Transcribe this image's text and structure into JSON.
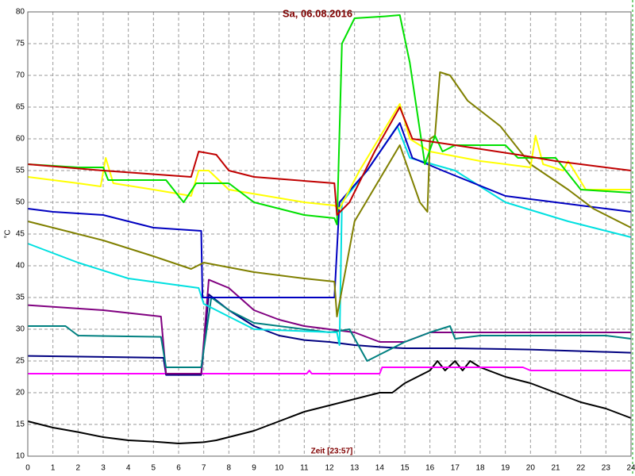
{
  "chart_data": {
    "type": "line",
    "title": "Sa, 06.08.2016",
    "ylabel": "°C",
    "xlabel": "Zeit [23:57]",
    "xlim": [
      0,
      24
    ],
    "xticks": [
      0,
      1,
      2,
      3,
      4,
      5,
      6,
      7,
      8,
      9,
      10,
      11,
      12,
      13,
      14,
      15,
      16,
      17,
      18,
      19,
      20,
      21,
      22,
      23,
      24
    ],
    "ylim": [
      10,
      80
    ],
    "yticks": [
      10,
      15,
      20,
      25,
      30,
      35,
      40,
      45,
      50,
      55,
      60,
      65,
      70,
      75,
      80
    ],
    "grid": true,
    "series": [
      {
        "color": "#000000",
        "x": [
          0,
          1,
          2,
          3,
          4,
          5,
          6,
          7,
          7.5,
          8,
          9,
          10,
          11,
          12,
          13,
          14,
          14.5,
          15,
          15.5,
          16,
          16.3,
          16.6,
          17,
          17.3,
          17.6,
          18,
          19,
          20,
          21,
          22,
          23,
          24
        ],
        "values": [
          15.5,
          14.5,
          13.8,
          13,
          12.5,
          12.3,
          12,
          12.2,
          12.5,
          13,
          14,
          15.5,
          17,
          18,
          19,
          20,
          20,
          21.5,
          22.5,
          23.5,
          25,
          23.5,
          25,
          23.5,
          25,
          24,
          22.5,
          21.5,
          20,
          18.5,
          17.5,
          16
        ]
      },
      {
        "color": "#ff00ff",
        "x": [
          0,
          11.1,
          11.2,
          11.3,
          14,
          14.1,
          19.7,
          20,
          24
        ],
        "values": [
          23,
          23,
          23.5,
          23,
          23,
          24,
          24,
          23.5,
          23.5
        ]
      },
      {
        "color": "#000080",
        "x": [
          0,
          5.4,
          5.5,
          6.9,
          7.2,
          8,
          9,
          10,
          11,
          12,
          13,
          14,
          15,
          17,
          20,
          24
        ],
        "values": [
          25.8,
          25.5,
          22.8,
          22.8,
          35.5,
          33,
          30.5,
          29,
          28.3,
          28,
          27.5,
          27.2,
          27,
          27,
          26.8,
          26.3
        ]
      },
      {
        "color": "#800080",
        "x": [
          0,
          3,
          5.3,
          5.5,
          6.9,
          7.2,
          8,
          9,
          10,
          11,
          12,
          13,
          14,
          15,
          16,
          18,
          20,
          24
        ],
        "values": [
          33.8,
          33,
          32,
          23,
          23,
          37.8,
          36.5,
          33,
          31.5,
          30.5,
          30,
          29.5,
          28,
          28,
          29.5,
          29.5,
          29.5,
          29.5
        ]
      },
      {
        "color": "#008080",
        "x": [
          0,
          1.5,
          2,
          5.3,
          5.5,
          6.9,
          7.3,
          8,
          9,
          12,
          12.8,
          13.5,
          14,
          15,
          16,
          16.8,
          17,
          18,
          20,
          23,
          24
        ],
        "values": [
          30.5,
          30.5,
          29,
          28.8,
          24,
          24,
          35,
          33,
          31,
          29.5,
          30,
          25,
          26,
          28,
          29.5,
          30.5,
          28.5,
          29,
          29,
          29,
          28.5
        ]
      },
      {
        "color": "#00e0e0",
        "x": [
          0,
          2,
          4,
          6.8,
          7,
          8,
          9,
          12.3,
          12.4,
          12.5,
          13.5,
          14.7,
          15.2,
          17,
          19,
          21.5,
          22,
          24
        ],
        "values": [
          43.5,
          40.5,
          38,
          36.5,
          34,
          32,
          30,
          29.5,
          27.5,
          50,
          55,
          62,
          57,
          55,
          50,
          47,
          46.5,
          44.5
        ]
      },
      {
        "color": "#0000c0",
        "x": [
          0,
          1,
          3,
          5,
          6.9,
          6.95,
          12.2,
          12.4,
          13.5,
          14.8,
          15.3,
          16.5,
          19,
          21,
          23,
          24
        ],
        "values": [
          49,
          48.5,
          48,
          46,
          45.5,
          35,
          35,
          50,
          55,
          62.5,
          57,
          55,
          51,
          50,
          49,
          48.5
        ]
      },
      {
        "color": "#808000",
        "x": [
          0,
          1.5,
          3,
          5,
          6.5,
          7,
          9,
          11,
          12.2,
          12.3,
          13,
          14.8,
          15.6,
          15.9,
          16,
          16.2,
          16.4,
          16.8,
          17.5,
          18.8,
          20,
          21.5,
          22.5,
          24
        ],
        "values": [
          47,
          45.5,
          44,
          41.5,
          39.5,
          40.5,
          39,
          38,
          37.5,
          32,
          47,
          59,
          50,
          48.5,
          60,
          60.5,
          70.5,
          70,
          66,
          62,
          56,
          52,
          49,
          46
        ]
      },
      {
        "color": "#ffff00",
        "x": [
          0,
          2,
          2.9,
          3.1,
          3.4,
          5,
          6.5,
          6.8,
          7.2,
          8,
          9.5,
          11,
          12.2,
          12.4,
          13.2,
          14.8,
          15.2,
          16,
          18,
          20,
          20.2,
          20.5,
          21.3,
          21.5,
          22.2,
          24
        ],
        "values": [
          54,
          53,
          52.5,
          57,
          53,
          52,
          51,
          55,
          55,
          52,
          51,
          50,
          49.5,
          49,
          55,
          65.5,
          60,
          58,
          56.5,
          55.5,
          60.5,
          56,
          55,
          56.5,
          52,
          52
        ]
      },
      {
        "color": "#00e000",
        "x": [
          0,
          2,
          3,
          3.2,
          5.5,
          6.2,
          6.7,
          8,
          9,
          10,
          11,
          12.2,
          12.3,
          12.5,
          13,
          14.2,
          14.8,
          15.2,
          15.8,
          16.2,
          16.5,
          17,
          19,
          19.5,
          21,
          22,
          24
        ],
        "values": [
          56,
          55.5,
          55.5,
          53.5,
          53.5,
          50,
          53,
          53,
          50,
          49,
          48,
          47.5,
          46.5,
          75,
          79,
          79.3,
          79.5,
          72,
          56,
          60.5,
          58,
          59,
          59,
          57,
          57,
          52,
          51.5
        ]
      },
      {
        "color": "#c00000",
        "x": [
          0,
          3,
          6.5,
          6.8,
          7.5,
          8,
          9,
          12.2,
          12.3,
          12.8,
          13.8,
          14.8,
          15.3,
          17,
          19.5,
          21,
          24
        ],
        "values": [
          56,
          55,
          54,
          58,
          57.5,
          55,
          54,
          53,
          48,
          50,
          58,
          65,
          60,
          59,
          57.5,
          56.5,
          55
        ]
      }
    ]
  }
}
